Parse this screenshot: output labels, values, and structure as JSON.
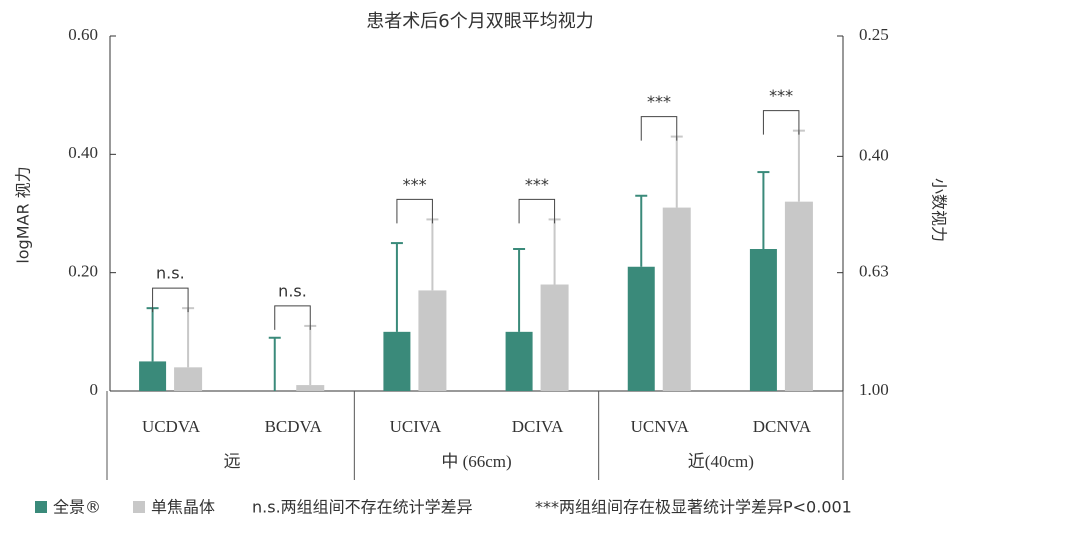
{
  "chart_data": {
    "type": "bar",
    "title": "患者术后6个月双眼平均视力",
    "ylabel": "logMAR 视力",
    "y2label": "小数视力",
    "categories": [
      "UCDVA",
      "BCDVA",
      "UCIVA",
      "DCIVA",
      "UCNVA",
      "DCNVA"
    ],
    "groups": [
      "远",
      "中 (66cm)",
      "近(40cm)"
    ],
    "series": [
      {
        "name": "全景®",
        "color": "#3a8a7a",
        "values": [
          0.05,
          0,
          0.1,
          0.1,
          0.21,
          0.24
        ],
        "errors": [
          0.09,
          0.09,
          0.15,
          0.14,
          0.12,
          0.13
        ]
      },
      {
        "name": "单焦晶体",
        "color": "#c8c8c8",
        "values": [
          0.04,
          0.01,
          0.17,
          0.18,
          0.31,
          0.32
        ],
        "errors": [
          0.1,
          0.1,
          0.12,
          0.11,
          0.12,
          0.12
        ]
      }
    ],
    "significance": [
      "n.s.",
      "n.s.",
      "***",
      "***",
      "***",
      "***"
    ],
    "notes": [
      "n.s.两组组间不存在统计学差异",
      "***两组组间存在极显著统计学差异P<0.001"
    ],
    "ylim": [
      0,
      0.6
    ],
    "yticks": [
      0,
      {
        "value": 0.2,
        "label": "0.20"
      },
      {
        "value": 0.4,
        "label": "0.40"
      },
      {
        "value": 0.6,
        "label": "0.60"
      }
    ],
    "y2lim": [
      1,
      0.25
    ],
    "y2log": true,
    "y2ticks": [
      {
        "value": 1,
        "label": "1.00"
      },
      0.63,
      {
        "value": 0.4,
        "label": "0.40"
      },
      0.25
    ]
  }
}
